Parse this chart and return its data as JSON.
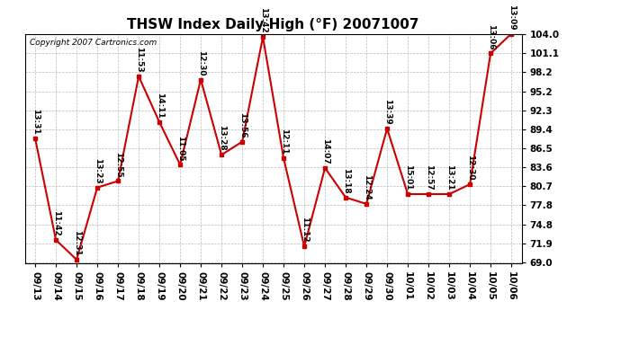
{
  "title": "THSW Index Daily High (°F) 20071007",
  "copyright": "Copyright 2007 Cartronics.com",
  "dates": [
    "09/13",
    "09/14",
    "09/15",
    "09/16",
    "09/17",
    "09/18",
    "09/19",
    "09/20",
    "09/21",
    "09/22",
    "09/23",
    "09/24",
    "09/25",
    "09/26",
    "09/27",
    "09/28",
    "09/29",
    "09/30",
    "10/01",
    "10/02",
    "10/03",
    "10/04",
    "10/05",
    "10/06"
  ],
  "values": [
    88.0,
    72.5,
    69.5,
    80.5,
    81.5,
    97.5,
    90.5,
    84.0,
    97.0,
    85.5,
    87.5,
    103.5,
    85.0,
    71.5,
    83.5,
    79.0,
    78.0,
    89.5,
    79.5,
    79.5,
    79.5,
    81.0,
    101.0,
    104.0
  ],
  "labels": [
    "13:31",
    "11:42",
    "12:31",
    "13:23",
    "12:55",
    "11:53",
    "14:11",
    "11:05",
    "12:30",
    "13:28",
    "13:56",
    "13:42",
    "12:11",
    "11:12",
    "14:07",
    "13:18",
    "12:24",
    "13:39",
    "15:01",
    "12:57",
    "13:21",
    "12:30",
    "13:06",
    "13:09"
  ],
  "ylim": [
    69.0,
    104.0
  ],
  "yticks": [
    69.0,
    71.9,
    74.8,
    77.8,
    80.7,
    83.6,
    86.5,
    89.4,
    92.3,
    95.2,
    98.2,
    101.1,
    104.0
  ],
  "line_color": "#cc0000",
  "marker_color": "#cc0000",
  "bg_color": "#ffffff",
  "grid_color": "#bbbbbb",
  "title_fontsize": 11,
  "label_fontsize": 6.5,
  "copyright_fontsize": 6.5,
  "tick_fontsize": 7.5,
  "ytick_fontsize": 7.5
}
